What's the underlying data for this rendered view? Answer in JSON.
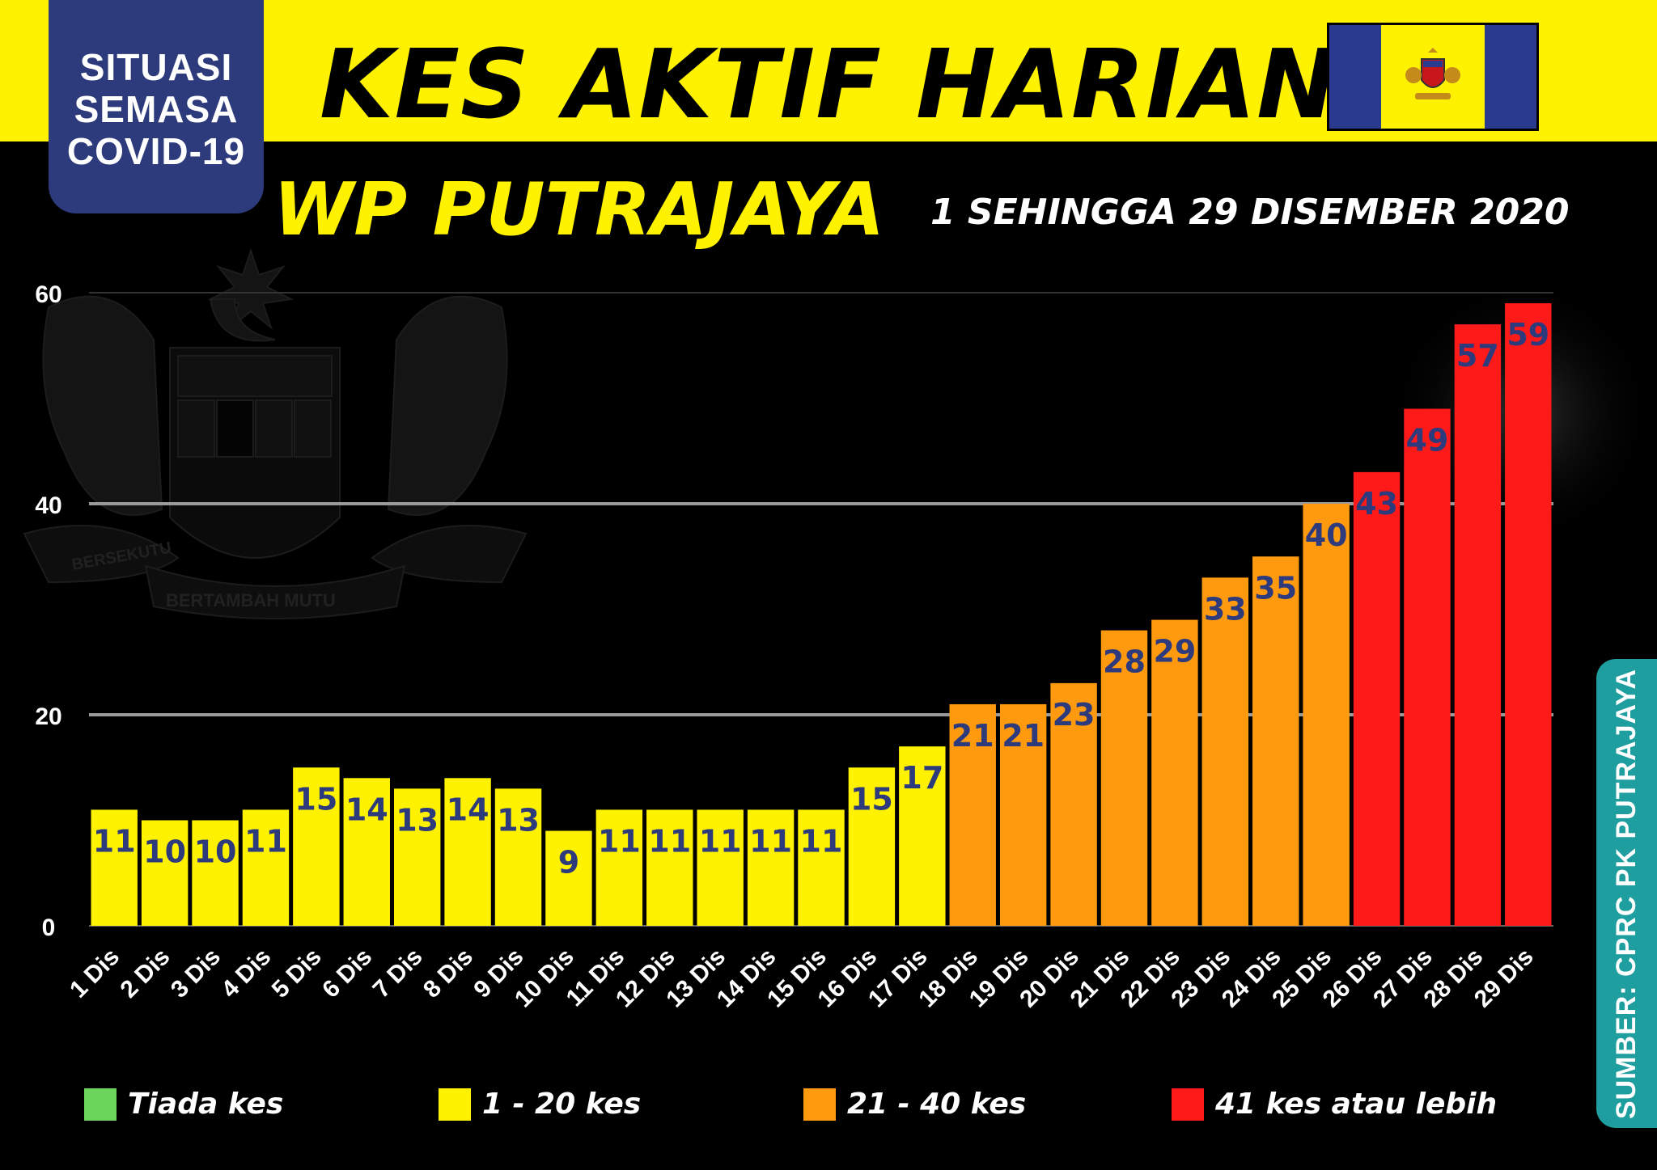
{
  "header": {
    "badge_lines": [
      "SITUASI",
      "SEMASA",
      "COVID-19"
    ],
    "title": "KES AKTIF HARIAN",
    "subtitle": "WP PUTRAJAYA",
    "date_range": "1 SEHINGGA 29 DISEMBER 2020"
  },
  "watermark": {
    "motto_left": "BERSEKUTU",
    "motto_bottom": "BERTAMBAH MUTU"
  },
  "source": "SUMBER: CPRC PK PUTRAJAYA",
  "legend": [
    {
      "label": "Tiada kes",
      "color": "#6bd45a"
    },
    {
      "label": "1 - 20 kes",
      "color": "#fff200"
    },
    {
      "label": "21 - 40 kes",
      "color": "#ff9a0f"
    },
    {
      "label": "41 kes atau lebih",
      "color": "#ff1a1a"
    }
  ],
  "colors": {
    "yellow": "#fff200",
    "orange": "#ff9a0f",
    "red": "#ff1a1a",
    "label_text": "#2d3a7c",
    "badge": "#2d3a7c",
    "source_bg": "#1e9e9e"
  },
  "chart_data": {
    "type": "bar",
    "title": "KES AKTIF HARIAN",
    "subtitle": "WP PUTRAJAYA",
    "xlabel": "",
    "ylabel": "",
    "ylim": [
      0,
      60
    ],
    "yticks": [
      0,
      20,
      40,
      60
    ],
    "grid": true,
    "legend_position": "bottom",
    "categories": [
      "1 Dis",
      "2 Dis",
      "3 Dis",
      "4 Dis",
      "5 Dis",
      "6 Dis",
      "7 Dis",
      "8 Dis",
      "9 Dis",
      "10 Dis",
      "11 Dis",
      "12 Dis",
      "13 Dis",
      "14 Dis",
      "15 Dis",
      "16 Dis",
      "17 Dis",
      "18 Dis",
      "19 Dis",
      "20 Dis",
      "21 Dis",
      "22 Dis",
      "23 Dis",
      "24 Dis",
      "25 Dis",
      "26 Dis",
      "27 Dis",
      "28 Dis",
      "29 Dis"
    ],
    "values": [
      11,
      10,
      10,
      11,
      15,
      14,
      13,
      14,
      13,
      9,
      11,
      11,
      11,
      11,
      11,
      15,
      17,
      21,
      21,
      23,
      28,
      29,
      33,
      35,
      40,
      43,
      49,
      57,
      59
    ]
  }
}
